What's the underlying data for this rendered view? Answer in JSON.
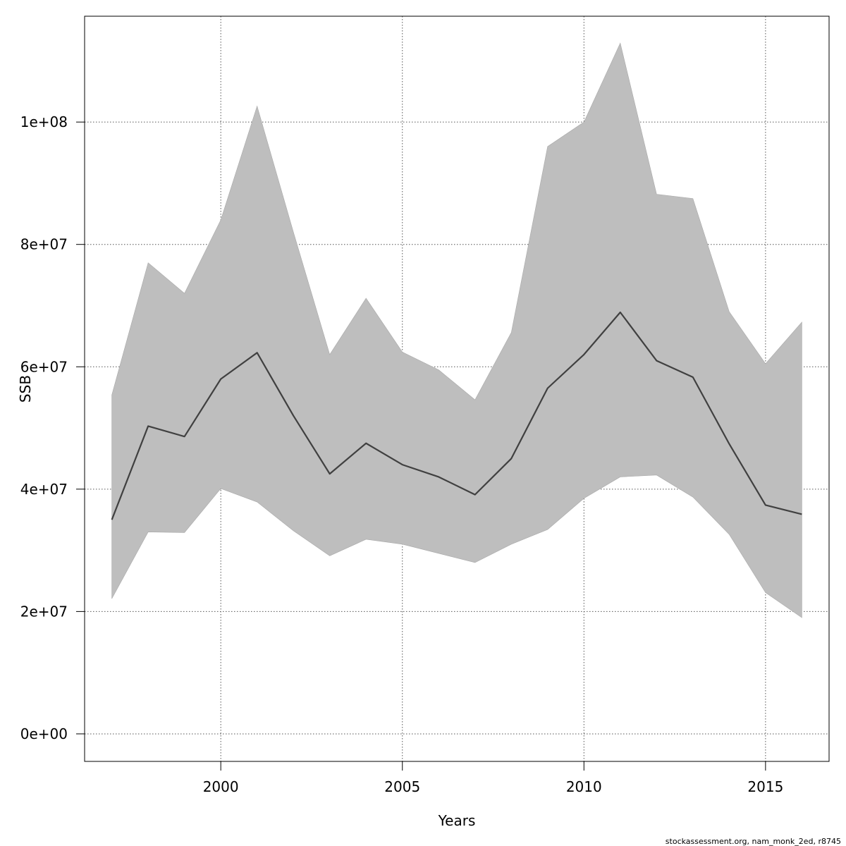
{
  "chart_data": {
    "type": "area",
    "title": "",
    "xlabel": "Years",
    "ylabel": "SSB",
    "x": [
      1997,
      1998,
      1999,
      2000,
      2001,
      2002,
      2003,
      2004,
      2005,
      2006,
      2007,
      2008,
      2009,
      2010,
      2011,
      2012,
      2013,
      2014,
      2015,
      2016
    ],
    "series": [
      {
        "role": "estimate",
        "values": [
          35000000,
          50300000,
          48600000,
          58000000,
          62300000,
          52000000,
          42500000,
          47500000,
          44000000,
          42000000,
          39100000,
          45000000,
          56500000,
          62000000,
          68900000,
          61000000,
          58300000,
          47400000,
          37400000,
          35900000
        ]
      },
      {
        "role": "upper",
        "values": [
          55400000,
          77000000,
          72000000,
          84000000,
          102600000,
          82000000,
          62000000,
          71200000,
          62400000,
          59500000,
          54600000,
          65600000,
          96000000,
          100000000,
          112900000,
          88200000,
          87500000,
          69000000,
          60500000,
          67300000
        ]
      },
      {
        "role": "lower",
        "values": [
          22100000,
          33000000,
          32900000,
          40100000,
          37900000,
          33200000,
          29100000,
          31800000,
          31000000,
          29500000,
          28000000,
          31000000,
          33400000,
          38500000,
          42000000,
          42300000,
          38700000,
          32600000,
          23100000,
          19000000
        ]
      }
    ],
    "xlim": [
      1996.25,
      2016.75
    ],
    "ylim": [
      -4500000,
      117300000
    ],
    "xticks": [
      2000,
      2005,
      2010,
      2015
    ],
    "xtick_labels": [
      "2000",
      "2005",
      "2010",
      "2015"
    ],
    "yticks": [
      0,
      20000000,
      40000000,
      60000000,
      80000000,
      100000000
    ],
    "ytick_labels": [
      "0e+00",
      "2e+07",
      "4e+07",
      "6e+07",
      "8e+07",
      "1e+08"
    ],
    "grid": true,
    "legend": "none",
    "colors": {
      "band": "#bebebe",
      "line": "#404040",
      "grid": "#555555"
    }
  },
  "footer": "stockassessment.org, nam_monk_2ed, r8745"
}
